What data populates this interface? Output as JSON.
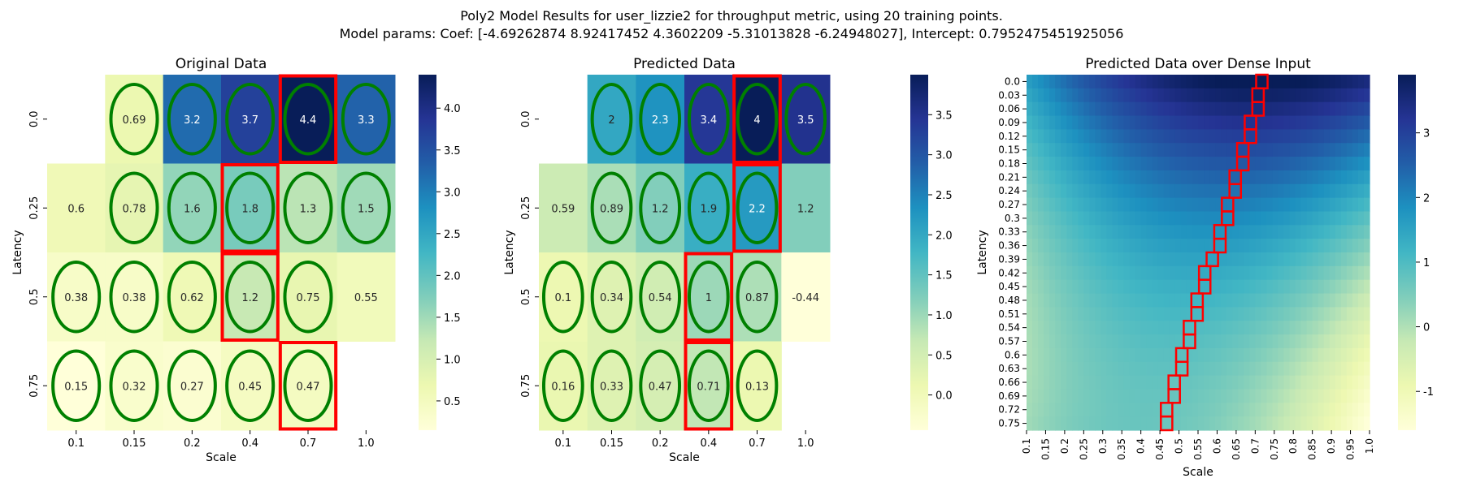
{
  "title_line1": "Poly2 Model Results for user_lizzie2 for throughput metric, using 20 training points.",
  "title_line2": "Model params: Coef: [-4.69262874  8.92417452  4.3602209  -5.31013828 -6.24948027], Intercept: 0.7952475451925056",
  "colors": {
    "low": "#ffffd9",
    "high": "#081d58",
    "ellipse": "#008000",
    "rect": "#ff0000"
  },
  "chart_data": [
    {
      "type": "heatmap",
      "title": "Original Data",
      "xlabel": "Scale",
      "ylabel": "Latency",
      "x": [
        "0.1",
        "0.15",
        "0.2",
        "0.4",
        "0.7",
        "1.0"
      ],
      "y": [
        "0.0",
        "0.25",
        "0.5",
        "0.75"
      ],
      "values": [
        [
          null,
          0.69,
          3.2,
          3.7,
          4.4,
          3.3
        ],
        [
          0.6,
          0.78,
          1.6,
          1.8,
          1.3,
          1.5
        ],
        [
          0.38,
          0.38,
          0.62,
          1.2,
          0.75,
          0.55
        ],
        [
          0.15,
          0.32,
          0.27,
          0.45,
          0.47,
          null
        ]
      ],
      "value_labels": [
        [
          null,
          "0.69",
          "3.2",
          "3.7",
          "4.4",
          "3.3"
        ],
        [
          "0.6",
          "0.78",
          "1.6",
          "1.8",
          "1.3",
          "1.5"
        ],
        [
          "0.38",
          "0.38",
          "0.62",
          "1.2",
          "0.75",
          "0.55"
        ],
        [
          "0.15",
          "0.32",
          "0.27",
          "0.45",
          "0.47",
          null
        ]
      ],
      "circled": [
        [
          false,
          true,
          true,
          true,
          true,
          true
        ],
        [
          false,
          true,
          true,
          true,
          true,
          true
        ],
        [
          true,
          true,
          true,
          true,
          true,
          false
        ],
        [
          true,
          true,
          true,
          true,
          true,
          false
        ]
      ],
      "highlighted": [
        [
          0,
          4
        ],
        [
          1,
          3
        ],
        [
          2,
          3
        ],
        [
          3,
          4
        ]
      ],
      "vmin": 0.15,
      "vmax": 4.4,
      "colorbar_ticks": [
        "0.5",
        "1.0",
        "1.5",
        "2.0",
        "2.5",
        "3.0",
        "3.5",
        "4.0"
      ]
    },
    {
      "type": "heatmap",
      "title": "Predicted Data",
      "xlabel": "Scale",
      "ylabel": "Latency",
      "x": [
        "0.1",
        "0.15",
        "0.2",
        "0.4",
        "0.7",
        "1.0"
      ],
      "y": [
        "0.0",
        "0.25",
        "0.5",
        "0.75"
      ],
      "values": [
        [
          null,
          2.0,
          2.3,
          3.4,
          4.0,
          3.5
        ],
        [
          0.59,
          0.89,
          1.2,
          1.9,
          2.2,
          1.2
        ],
        [
          0.1,
          0.34,
          0.54,
          1.0,
          0.87,
          -0.44
        ],
        [
          0.16,
          0.33,
          0.47,
          0.71,
          0.13,
          null
        ]
      ],
      "value_labels": [
        [
          null,
          "2",
          "2.3",
          "3.4",
          "4",
          "3.5"
        ],
        [
          "0.59",
          "0.89",
          "1.2",
          "1.9",
          "2.2",
          "1.2"
        ],
        [
          "0.1",
          "0.34",
          "0.54",
          "1",
          "0.87",
          "-0.44"
        ],
        [
          "0.16",
          "0.33",
          "0.47",
          "0.71",
          "0.13",
          null
        ]
      ],
      "circled": [
        [
          false,
          true,
          true,
          true,
          true,
          true
        ],
        [
          false,
          true,
          true,
          true,
          true,
          false
        ],
        [
          true,
          true,
          true,
          true,
          true,
          false
        ],
        [
          true,
          true,
          true,
          true,
          true,
          false
        ]
      ],
      "highlighted": [
        [
          0,
          4
        ],
        [
          1,
          4
        ],
        [
          2,
          3
        ],
        [
          3,
          3
        ]
      ],
      "vmin": -0.44,
      "vmax": 4.0,
      "colorbar_ticks": [
        "0.0",
        "0.5",
        "1.0",
        "1.5",
        "2.0",
        "2.5",
        "3.0",
        "3.5"
      ]
    },
    {
      "type": "heatmap",
      "title": "Predicted Data over Dense Input",
      "xlabel": "Scale",
      "ylabel": "Latency",
      "x": [
        "0.1",
        "0.15",
        "0.2",
        "0.25",
        "0.3",
        "0.35",
        "0.4",
        "0.45",
        "0.5",
        "0.55",
        "0.6",
        "0.65",
        "0.7",
        "0.75",
        "0.8",
        "0.85",
        "0.9",
        "0.95",
        "1.0"
      ],
      "y": [
        "0.0",
        "0.03",
        "0.06",
        "0.09",
        "0.12",
        "0.15",
        "0.18",
        "0.21",
        "0.24",
        "0.27",
        "0.3",
        "0.33",
        "0.36",
        "0.39",
        "0.42",
        "0.45",
        "0.48",
        "0.51",
        "0.54",
        "0.57",
        "0.6",
        "0.63",
        "0.66",
        "0.69",
        "0.72",
        "0.75"
      ],
      "surface": {
        "intercept": 0.7952475451925056,
        "coef": [
          -4.69262874,
          8.92417452,
          4.3602209,
          -5.31013828,
          -6.24948027
        ],
        "terms": [
          "latency",
          "scale",
          "latency^2",
          "latency*scale",
          "scale^2"
        ]
      },
      "optimal_path": [
        [
          0.0,
          0.71
        ],
        [
          0.03,
          0.7
        ],
        [
          0.06,
          0.7
        ],
        [
          0.09,
          0.68
        ],
        [
          0.12,
          0.68
        ],
        [
          0.15,
          0.66
        ],
        [
          0.18,
          0.66
        ],
        [
          0.21,
          0.64
        ],
        [
          0.24,
          0.64
        ],
        [
          0.27,
          0.62
        ],
        [
          0.3,
          0.62
        ],
        [
          0.33,
          0.6
        ],
        [
          0.36,
          0.6
        ],
        [
          0.39,
          0.58
        ],
        [
          0.42,
          0.56
        ],
        [
          0.45,
          0.56
        ],
        [
          0.48,
          0.54
        ],
        [
          0.51,
          0.54
        ],
        [
          0.54,
          0.52
        ],
        [
          0.57,
          0.52
        ],
        [
          0.6,
          0.5
        ],
        [
          0.63,
          0.5
        ],
        [
          0.66,
          0.48
        ],
        [
          0.69,
          0.48
        ],
        [
          0.72,
          0.46
        ],
        [
          0.75,
          0.46
        ]
      ],
      "vmin": -1.6,
      "vmax": 3.9,
      "colorbar_ticks": [
        "-1",
        "0",
        "1",
        "2",
        "3"
      ]
    }
  ]
}
